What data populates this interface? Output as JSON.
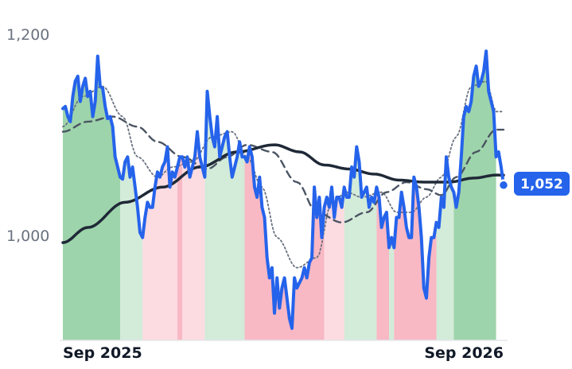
{
  "chart_data": {
    "type": "line",
    "title": "",
    "xlabel": "",
    "ylabel": "",
    "x_tick_labels": [
      "Sep 2025",
      "Sep 2026"
    ],
    "y_tick_labels": [
      "1,200",
      "1,000"
    ],
    "y_ticks": [
      1200,
      1000
    ],
    "ylim": [
      898,
      1212
    ],
    "last_value_label": "1,052",
    "grid": false,
    "colors": {
      "price": "#2563eb",
      "ma_long": "#1f2937",
      "ma_medium": "#4b5563",
      "ma_short": "#6b7280",
      "up_strong": "#9ed4ab",
      "up_light": "#d3ebd9",
      "down_strong": "#f8b8c4",
      "down_light": "#fcdbe1"
    },
    "regimes": [
      {
        "start": 0,
        "end": 23,
        "type": "up_strong"
      },
      {
        "start": 23,
        "end": 32,
        "type": "up_light"
      },
      {
        "start": 32,
        "end": 46,
        "type": "down_light"
      },
      {
        "start": 46,
        "end": 48,
        "type": "down_strong"
      },
      {
        "start": 48,
        "end": 57,
        "type": "down_light"
      },
      {
        "start": 57,
        "end": 73,
        "type": "up_light"
      },
      {
        "start": 73,
        "end": 105,
        "type": "down_strong"
      },
      {
        "start": 105,
        "end": 113,
        "type": "down_light"
      },
      {
        "start": 113,
        "end": 126,
        "type": "up_light"
      },
      {
        "start": 126,
        "end": 131,
        "type": "down_strong"
      },
      {
        "start": 131,
        "end": 133,
        "type": "up_light"
      },
      {
        "start": 133,
        "end": 150,
        "type": "down_strong"
      },
      {
        "start": 150,
        "end": 157,
        "type": "up_light"
      },
      {
        "start": 157,
        "end": 174,
        "type": "up_strong"
      }
    ],
    "series": [
      {
        "key": "price",
        "values": [
          1128,
          1130,
          1120,
          1115,
          1140,
          1155,
          1160,
          1135,
          1150,
          1158,
          1140,
          1145,
          1120,
          1135,
          1180,
          1150,
          1148,
          1130,
          1118,
          1120,
          1110,
          1080,
          1070,
          1060,
          1058,
          1075,
          1080,
          1060,
          1070,
          1050,
          1030,
          1005,
          1000,
          1020,
          1035,
          1030,
          1030,
          1050,
          1065,
          1060,
          1070,
          1075,
          1090,
          1050,
          1065,
          1060,
          1070,
          1080,
          1080,
          1070,
          1080,
          1060,
          1070,
          1080,
          1105,
          1080,
          1070,
          1060,
          1145,
          1120,
          1100,
          1090,
          1120,
          1080,
          1090,
          1100,
          1105,
          1080,
          1060,
          1070,
          1080,
          1095,
          1080,
          1080,
          1075,
          1090,
          1080,
          1050,
          1040,
          1060,
          1030,
          1020,
          980,
          960,
          970,
          925,
          960,
          930,
          950,
          960,
          940,
          920,
          910,
          960,
          950,
          955,
          960,
          970,
          960,
          975,
          980,
          1050,
          1020,
          1040,
          1000,
          1030,
          1040,
          1030,
          1050,
          1020,
          1040,
          1040,
          1030,
          1050,
          1040,
          1040,
          1070,
          1060,
          1090,
          1075,
          1040,
          1045,
          1050,
          1030,
          1040,
          1035,
          1050,
          1040,
          1010,
          1020,
          1025,
          990,
          1000,
          990,
          1020,
          1020,
          1045,
          1030,
          1010,
          1000,
          1000,
          1060,
          1050,
          1030,
          1000,
          950,
          940,
          980,
          1000,
          1000,
          1015,
          1010,
          1040,
          1030,
          1080,
          1060,
          1050,
          1045,
          1030,
          1045,
          1080,
          1120,
          1130,
          1125,
          1135,
          1160,
          1170,
          1150,
          1155,
          1165,
          1185,
          1145,
          1135,
          1125,
          1080,
          1085,
          1070,
          1052
        ]
      },
      {
        "key": "ma_long",
        "values": [],
        "anchors": [
          [
            0,
            995
          ],
          [
            10,
            1010
          ],
          [
            25,
            1035
          ],
          [
            40,
            1050
          ],
          [
            55,
            1070
          ],
          [
            70,
            1085
          ],
          [
            85,
            1092
          ],
          [
            95,
            1085
          ],
          [
            105,
            1072
          ],
          [
            115,
            1068
          ],
          [
            125,
            1063
          ],
          [
            135,
            1057
          ],
          [
            145,
            1055
          ],
          [
            155,
            1055
          ],
          [
            165,
            1059
          ],
          [
            174,
            1062
          ]
        ]
      },
      {
        "key": "ma_medium",
        "values": [],
        "anchors": [
          [
            0,
            1105
          ],
          [
            10,
            1115
          ],
          [
            20,
            1120
          ],
          [
            30,
            1110
          ],
          [
            38,
            1095
          ],
          [
            48,
            1080
          ],
          [
            58,
            1068
          ],
          [
            66,
            1080
          ],
          [
            74,
            1092
          ],
          [
            84,
            1085
          ],
          [
            94,
            1055
          ],
          [
            102,
            1025
          ],
          [
            112,
            1015
          ],
          [
            122,
            1025
          ],
          [
            130,
            1045
          ],
          [
            138,
            1055
          ],
          [
            146,
            1048
          ],
          [
            152,
            1042
          ],
          [
            158,
            1060
          ],
          [
            166,
            1085
          ],
          [
            174,
            1107
          ]
        ]
      },
      {
        "key": "ma_short",
        "values": [],
        "anchors": [
          [
            0,
            1110
          ],
          [
            8,
            1140
          ],
          [
            16,
            1150
          ],
          [
            24,
            1120
          ],
          [
            30,
            1080
          ],
          [
            38,
            1060
          ],
          [
            44,
            1070
          ],
          [
            52,
            1075
          ],
          [
            60,
            1100
          ],
          [
            68,
            1105
          ],
          [
            74,
            1080
          ],
          [
            80,
            1050
          ],
          [
            86,
            1000
          ],
          [
            94,
            970
          ],
          [
            102,
            980
          ],
          [
            108,
            1035
          ],
          [
            114,
            1045
          ],
          [
            120,
            1040
          ],
          [
            128,
            1045
          ],
          [
            134,
            1025
          ],
          [
            140,
            1025
          ],
          [
            146,
            1040
          ],
          [
            152,
            1060
          ],
          [
            158,
            1100
          ],
          [
            164,
            1150
          ],
          [
            170,
            1155
          ],
          [
            174,
            1125
          ]
        ]
      }
    ]
  }
}
